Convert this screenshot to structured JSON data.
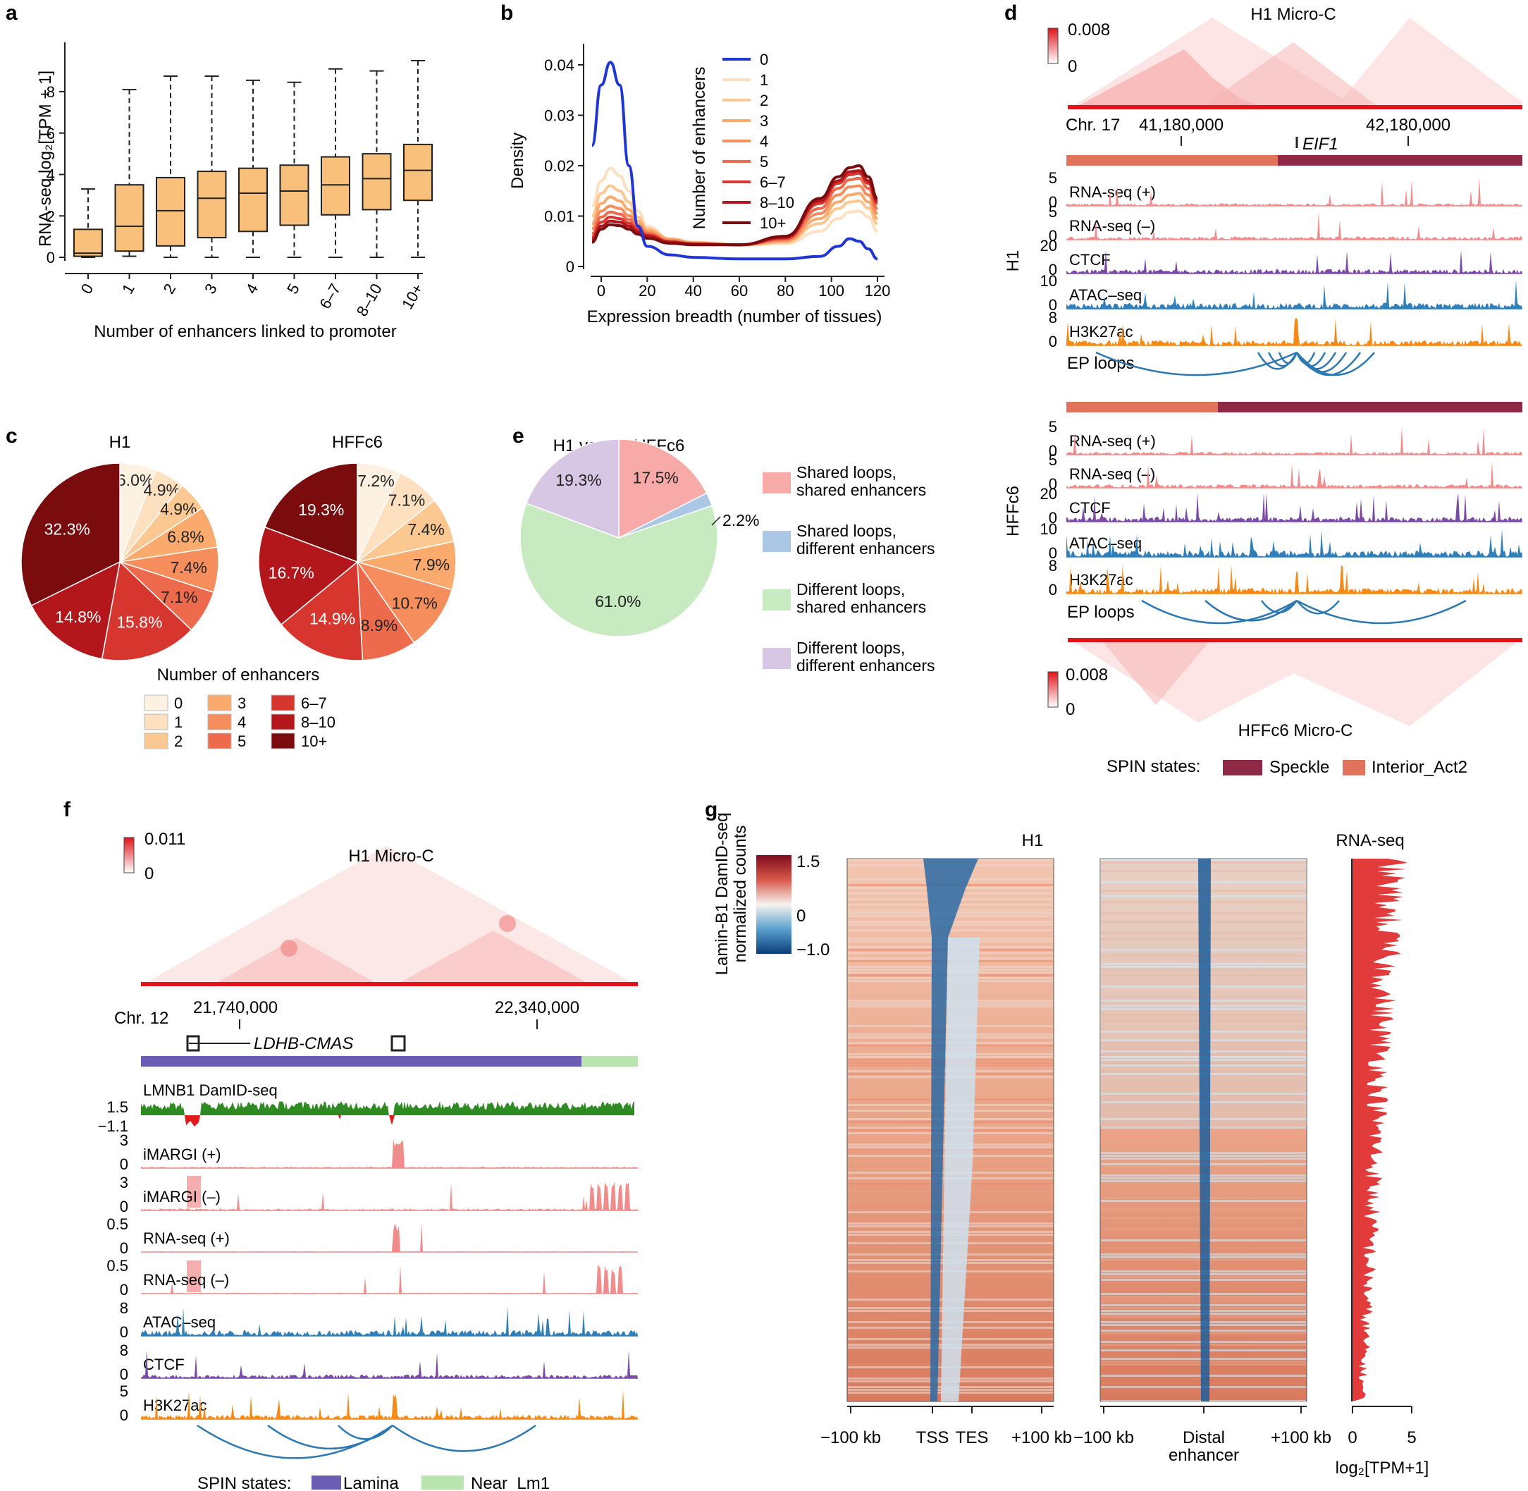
{
  "colors": {
    "box_fill": "#f9c07c",
    "enh0": "#fdf1e1",
    "enh1": "#fde0c0",
    "enh2": "#fcc891",
    "enh3": "#fbaa6e",
    "enh4": "#f58e5c",
    "enh5": "#ed6b4c",
    "enh67": "#d7362e",
    "enh810": "#b3171b",
    "enh10p": "#7a0c0e",
    "blue_curve": "#1f35d6",
    "shared_shared": "#f7aaa8",
    "shared_diff": "#aac8e6",
    "diff_shared": "#c8eac0",
    "diff_diff": "#d8c7e4",
    "speckle": "#8e2a45",
    "interior_act2": "#e0735a",
    "lamina": "#6a5db3",
    "near_lm1": "#b9e4b0",
    "rna": "#f08c8c",
    "ctcf": "#7b4aa8",
    "atac": "#2e7fba",
    "h3k27ac": "#f58a16",
    "damid_pos": "#2e8b22",
    "damid_neg": "#e31a1c",
    "loops": "#2b78b2"
  },
  "panel_a": {
    "letter": "a",
    "chart_data": {
      "type": "box",
      "categories": [
        "0",
        "1",
        "2",
        "3",
        "4",
        "5",
        "6–7",
        "8–10",
        "10+"
      ],
      "boxes": [
        {
          "min": 0,
          "q1": 0.05,
          "median": 0.2,
          "q3": 1.35,
          "max": 3.3
        },
        {
          "min": 0.05,
          "q1": 0.3,
          "median": 1.5,
          "q3": 3.5,
          "max": 8.1
        },
        {
          "min": 0,
          "q1": 0.55,
          "median": 2.25,
          "q3": 3.85,
          "max": 8.75
        },
        {
          "min": 0,
          "q1": 0.95,
          "median": 2.85,
          "q3": 4.15,
          "max": 8.75
        },
        {
          "min": 0,
          "q1": 1.25,
          "median": 3.1,
          "q3": 4.3,
          "max": 8.55
        },
        {
          "min": 0,
          "q1": 1.55,
          "median": 3.2,
          "q3": 4.45,
          "max": 8.45
        },
        {
          "min": 0,
          "q1": 2.05,
          "median": 3.5,
          "q3": 4.85,
          "max": 9.1
        },
        {
          "min": 0,
          "q1": 2.3,
          "median": 3.8,
          "q3": 5.0,
          "max": 9.0
        },
        {
          "min": 0,
          "q1": 2.75,
          "median": 4.2,
          "q3": 5.45,
          "max": 9.5
        }
      ],
      "ylim": [
        -0.2,
        10
      ],
      "yticks": [
        0,
        2,
        4,
        6,
        8
      ],
      "ylabel": "RNA-seq log₂[TPM + 1]",
      "xlabel": "Number of enhancers linked to promoter"
    }
  },
  "panel_b": {
    "letter": "b",
    "chart_data": {
      "type": "line",
      "xlim": [
        -10,
        122
      ],
      "ylim": [
        0,
        0.046
      ],
      "xticks": [
        0,
        20,
        40,
        60,
        80,
        100,
        120
      ],
      "yticks": [
        0,
        0.01,
        0.02,
        0.03,
        0.04
      ],
      "ytick_labels": [
        "0",
        "0.01",
        "0.02",
        "0.03",
        "0.04"
      ],
      "xlabel": "Expression breadth (number of tissues)",
      "ylabel": "Density",
      "legend_title": "Number of enhancers",
      "series": [
        {
          "name": "0",
          "x": [
            -4,
            0,
            4,
            8,
            12,
            16,
            20,
            30,
            40,
            60,
            80,
            95,
            103,
            108,
            112,
            116,
            120
          ],
          "y": [
            0.024,
            0.036,
            0.0405,
            0.036,
            0.02,
            0.008,
            0.004,
            0.0023,
            0.0018,
            0.0015,
            0.0015,
            0.002,
            0.004,
            0.0055,
            0.005,
            0.0035,
            0.0015
          ]
        },
        {
          "name": "1",
          "x": [
            -4,
            0,
            4,
            8,
            12,
            16,
            20,
            30,
            40,
            60,
            80,
            95,
            103,
            108,
            112,
            116,
            120
          ],
          "y": [
            0.012,
            0.017,
            0.0195,
            0.018,
            0.015,
            0.011,
            0.008,
            0.0055,
            0.0048,
            0.0042,
            0.0045,
            0.007,
            0.0095,
            0.0108,
            0.011,
            0.0098,
            0.007
          ]
        },
        {
          "name": "2",
          "x": [
            -4,
            0,
            4,
            8,
            12,
            16,
            20,
            30,
            40,
            60,
            80,
            95,
            103,
            108,
            112,
            116,
            120
          ],
          "y": [
            0.01,
            0.0145,
            0.016,
            0.015,
            0.0128,
            0.0098,
            0.0075,
            0.0055,
            0.0048,
            0.0043,
            0.0048,
            0.0085,
            0.0115,
            0.0128,
            0.013,
            0.0116,
            0.0085
          ]
        },
        {
          "name": "3",
          "x": [
            -4,
            0,
            4,
            8,
            12,
            16,
            20,
            30,
            40,
            60,
            80,
            95,
            103,
            108,
            112,
            116,
            120
          ],
          "y": [
            0.0085,
            0.0125,
            0.0138,
            0.013,
            0.0113,
            0.009,
            0.0072,
            0.0054,
            0.0047,
            0.0043,
            0.005,
            0.0095,
            0.0128,
            0.0142,
            0.0145,
            0.0128,
            0.0095
          ]
        },
        {
          "name": "4",
          "x": [
            -4,
            0,
            4,
            8,
            12,
            16,
            20,
            30,
            40,
            60,
            80,
            95,
            103,
            108,
            112,
            116,
            120
          ],
          "y": [
            0.0075,
            0.011,
            0.012,
            0.0115,
            0.0101,
            0.0083,
            0.0068,
            0.0052,
            0.0046,
            0.0043,
            0.0052,
            0.0105,
            0.0142,
            0.0158,
            0.016,
            0.0142,
            0.0105
          ]
        },
        {
          "name": "5",
          "x": [
            -4,
            0,
            4,
            8,
            12,
            16,
            20,
            30,
            40,
            60,
            80,
            95,
            103,
            108,
            112,
            116,
            120
          ],
          "y": [
            0.0065,
            0.0098,
            0.0108,
            0.0104,
            0.0093,
            0.0078,
            0.0065,
            0.005,
            0.0045,
            0.0043,
            0.0054,
            0.0115,
            0.0155,
            0.0172,
            0.0175,
            0.0155,
            0.0115
          ]
        },
        {
          "name": "6–7",
          "x": [
            -4,
            0,
            4,
            8,
            12,
            16,
            20,
            30,
            40,
            60,
            80,
            95,
            103,
            108,
            112,
            116,
            120
          ],
          "y": [
            0.0058,
            0.0088,
            0.0098,
            0.0095,
            0.0086,
            0.0073,
            0.0062,
            0.0049,
            0.0045,
            0.0043,
            0.0056,
            0.0125,
            0.0165,
            0.0182,
            0.0185,
            0.0165,
            0.0125
          ]
        },
        {
          "name": "8–10",
          "x": [
            -4,
            0,
            4,
            8,
            12,
            16,
            20,
            30,
            40,
            60,
            80,
            95,
            103,
            108,
            112,
            116,
            120
          ],
          "y": [
            0.0052,
            0.008,
            0.009,
            0.0088,
            0.008,
            0.0069,
            0.006,
            0.0048,
            0.0044,
            0.0043,
            0.0058,
            0.013,
            0.017,
            0.0188,
            0.019,
            0.017,
            0.013
          ]
        },
        {
          "name": "10+",
          "x": [
            -4,
            0,
            4,
            8,
            12,
            16,
            20,
            30,
            40,
            60,
            80,
            95,
            103,
            108,
            112,
            116,
            120
          ],
          "y": [
            0.0048,
            0.0074,
            0.0083,
            0.0081,
            0.0074,
            0.0064,
            0.0056,
            0.0046,
            0.0043,
            0.0043,
            0.006,
            0.0135,
            0.0178,
            0.0196,
            0.02,
            0.0178,
            0.0135
          ]
        }
      ]
    }
  },
  "panel_c": {
    "letter": "c",
    "legend_title": "Number of enhancers",
    "legend_items": [
      "0",
      "1",
      "2",
      "3",
      "4",
      "5",
      "6–7",
      "8–10",
      "10+"
    ],
    "chart_data": [
      {
        "type": "pie",
        "title": "H1",
        "labels": [
          "0",
          "1",
          "2",
          "3",
          "4",
          "5",
          "6–7",
          "8–10",
          "10+"
        ],
        "values": [
          6.0,
          4.9,
          4.9,
          6.8,
          7.4,
          7.1,
          15.8,
          14.8,
          32.3
        ],
        "value_labels": [
          "6.0%",
          "4.9%",
          "4.9%",
          "6.8%",
          "7.4%",
          "7.1%",
          "15.8%",
          "14.8%",
          "32.3%"
        ]
      },
      {
        "type": "pie",
        "title": "HFFc6",
        "labels": [
          "0",
          "1",
          "2",
          "3",
          "4",
          "5",
          "6–7",
          "8–10",
          "10+"
        ],
        "values": [
          7.2,
          7.1,
          7.4,
          7.9,
          10.7,
          8.9,
          14.9,
          16.7,
          19.3
        ],
        "value_labels": [
          "7.2%",
          "7.1%",
          "7.4%",
          "7.9%",
          "10.7%",
          "8.9%",
          "14.9%",
          "16.7%",
          "19.3%"
        ]
      }
    ]
  },
  "panel_e": {
    "letter": "e",
    "chart_data": {
      "type": "pie",
      "title": "H1 versus HFFc6",
      "labels": [
        "Shared loops, shared enhancers",
        "Shared loops, different enhancers",
        "Different loops, shared enhancers",
        "Different loops, different enhancers"
      ],
      "values": [
        17.5,
        2.2,
        61.0,
        19.3
      ],
      "value_labels": [
        "17.5%",
        "2.2%",
        "61.0%",
        "19.3%"
      ]
    },
    "legend": [
      {
        "line1": "Shared loops,",
        "line2": "shared enhancers"
      },
      {
        "line1": "Shared loops,",
        "line2": "different enhancers"
      },
      {
        "line1": "Different loops,",
        "line2": "shared enhancers"
      },
      {
        "line1": "Different loops,",
        "line2": "different enhancers"
      }
    ]
  },
  "panel_d": {
    "letter": "d",
    "top_title": "H1 Micro-C",
    "bottom_title": "HFFc6 Micro-C",
    "scale_max": "0.008",
    "scale_min": "0",
    "chrom": "Chr. 17",
    "coord1": "41,180,000",
    "coord2": "42,180,000",
    "gene": "EIF1",
    "h1_label": "H1",
    "hffc6_label": "HFFc6",
    "tracks": [
      {
        "name": "RNA-seq (+)",
        "max": "5",
        "min": "0"
      },
      {
        "name": "RNA-seq (–)",
        "max": "5",
        "min": "0"
      },
      {
        "name": "CTCF",
        "max": "20",
        "min": "0"
      },
      {
        "name": "ATAC–seq",
        "max": "10",
        "min": "0"
      },
      {
        "name": "H3K27ac",
        "max": "8",
        "min": "0"
      }
    ],
    "loops_label": "EP loops",
    "spin_label": "SPIN states:",
    "spin_states": [
      "Speckle",
      "Interior_Act2"
    ]
  },
  "panel_f": {
    "letter": "f",
    "title": "H1 Micro-C",
    "scale_max": "0.011",
    "scale_min": "0",
    "chrom": "Chr. 12",
    "coord1": "21,740,000",
    "coord2": "22,340,000",
    "gene": "LDHB-CMAS",
    "damid": {
      "name": "LMNB1 DamID-seq",
      "max": "1.5",
      "min": "−1.1"
    },
    "tracks": [
      {
        "name": "iMARGI (+)",
        "max": "3",
        "min": "0"
      },
      {
        "name": "iMARGI (–)",
        "max": "3",
        "min": "0"
      },
      {
        "name": "RNA-seq (+)",
        "max": "0.5",
        "min": "0"
      },
      {
        "name": "RNA-seq (–)",
        "max": "0.5",
        "min": "0"
      },
      {
        "name": "ATAC–seq",
        "max": "8",
        "min": "0"
      },
      {
        "name": "CTCF",
        "max": "8",
        "min": "0"
      },
      {
        "name": "H3K27ac",
        "max": "5",
        "min": "0"
      }
    ],
    "spin_label": "SPIN states:",
    "spin_states": [
      "Lamina",
      "Near_Lm1"
    ]
  },
  "panel_g": {
    "letter": "g",
    "cbar_title1": "Lamin-B1 DamID-seq",
    "cbar_title2": "normalized counts",
    "cbar_ticks": [
      "1.5",
      "0",
      "−1.0"
    ],
    "title": "H1",
    "rna_title": "RNA-seq",
    "left_ticks": [
      "−100 kb",
      "TSS",
      "TES",
      "+100 kb"
    ],
    "mid_ticks": [
      "−100 kb",
      "Distal",
      "enhancer",
      "+100 kb"
    ],
    "rna_ticks": [
      "0",
      "5"
    ],
    "rna_xlabel": "log₂[TPM+1]"
  }
}
